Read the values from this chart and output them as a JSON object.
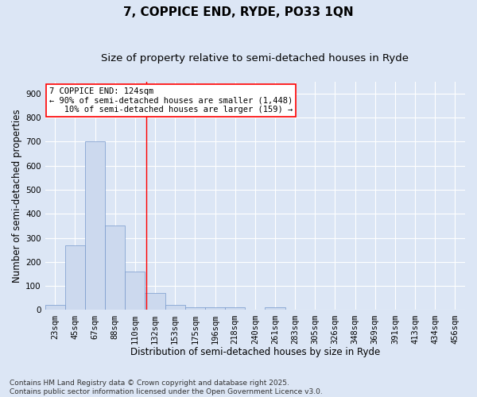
{
  "title": "7, COPPICE END, RYDE, PO33 1QN",
  "subtitle": "Size of property relative to semi-detached houses in Ryde",
  "xlabel": "Distribution of semi-detached houses by size in Ryde",
  "ylabel": "Number of semi-detached properties",
  "categories": [
    "23sqm",
    "45sqm",
    "67sqm",
    "88sqm",
    "110sqm",
    "132sqm",
    "153sqm",
    "175sqm",
    "196sqm",
    "218sqm",
    "240sqm",
    "261sqm",
    "283sqm",
    "305sqm",
    "326sqm",
    "348sqm",
    "369sqm",
    "391sqm",
    "413sqm",
    "434sqm",
    "456sqm"
  ],
  "values": [
    20,
    270,
    700,
    350,
    160,
    70,
    23,
    12,
    12,
    10,
    0,
    10,
    0,
    0,
    0,
    0,
    0,
    0,
    0,
    0,
    0
  ],
  "bar_color": "#ccd9ee",
  "bar_edge_color": "#7799cc",
  "background_color": "#dce6f5",
  "grid_color": "#ffffff",
  "vline_x": 4.55,
  "vline_color": "red",
  "annotation_line1": "7 COPPICE END: 124sqm",
  "annotation_line2": "← 90% of semi-detached houses are smaller (1,448)",
  "annotation_line3": "   10% of semi-detached houses are larger (159) →",
  "annotation_box_color": "white",
  "annotation_box_edge": "red",
  "ylim": [
    0,
    950
  ],
  "yticks": [
    0,
    100,
    200,
    300,
    400,
    500,
    600,
    700,
    800,
    900
  ],
  "footer": "Contains HM Land Registry data © Crown copyright and database right 2025.\nContains public sector information licensed under the Open Government Licence v3.0.",
  "title_fontsize": 11,
  "subtitle_fontsize": 9.5,
  "axis_label_fontsize": 8.5,
  "tick_fontsize": 7.5,
  "annotation_fontsize": 7.5,
  "footer_fontsize": 6.5
}
